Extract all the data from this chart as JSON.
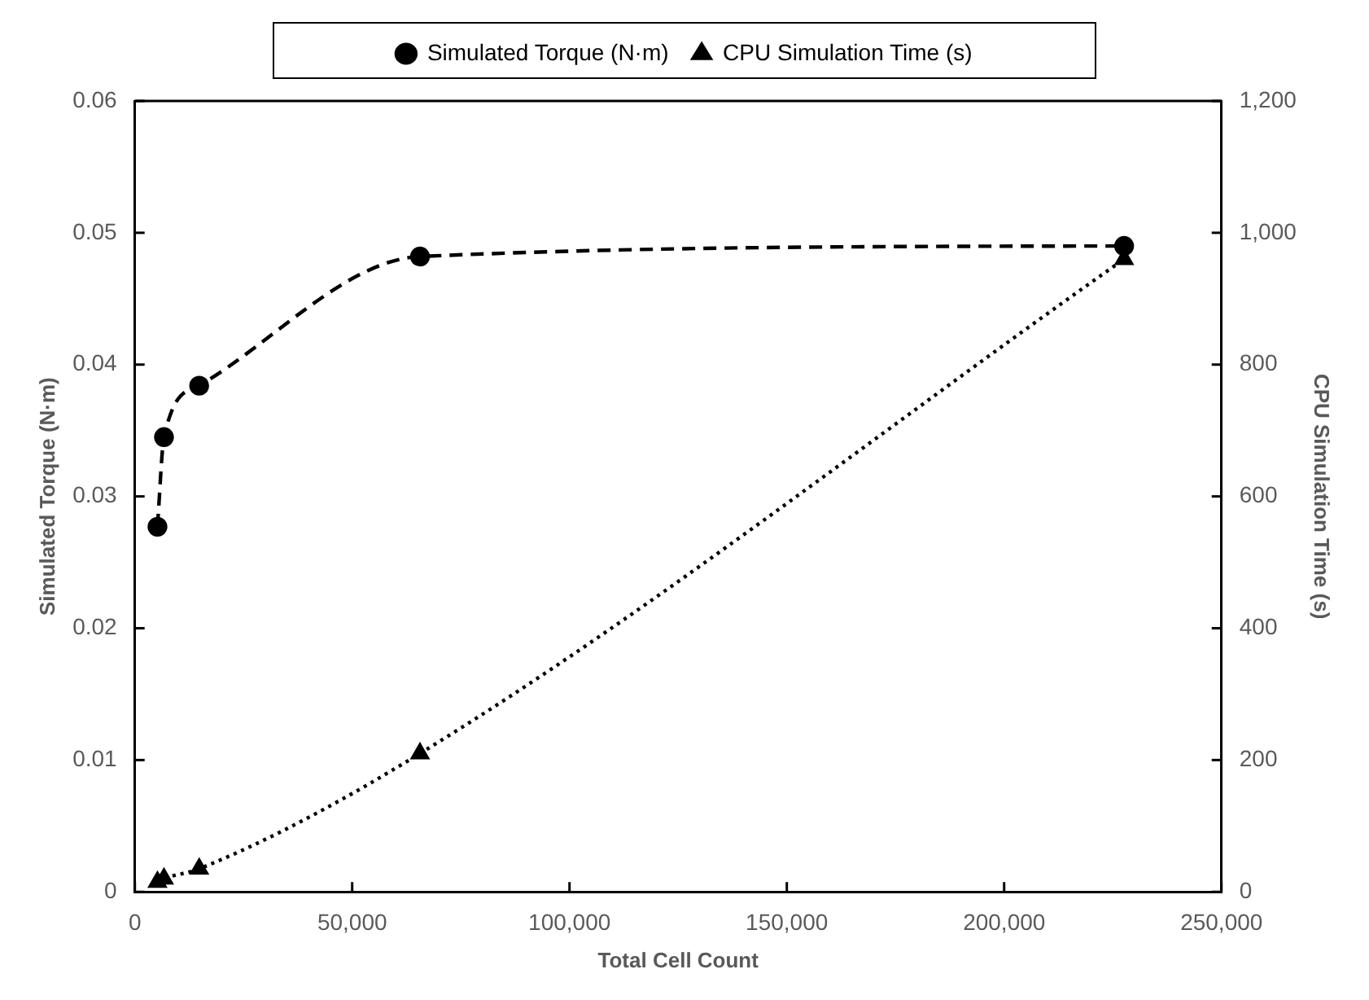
{
  "chart_data": {
    "type": "line",
    "xlabel": "Total Cell Count",
    "ylabel": "Simulated Torque (N·m)",
    "y2label": "CPU Simulation Time (s)",
    "x": [
      5200,
      6700,
      14800,
      65600,
      227600
    ],
    "series": [
      {
        "name": "Simulated Torque (N·m)",
        "color": "#000000",
        "marker": "circle",
        "line_style": "dashed",
        "values": [
          0.0277,
          0.0345,
          0.0384,
          0.0482,
          0.049
        ]
      },
      {
        "name": "CPU Simulation Time (s)",
        "color": "#000000",
        "marker": "triangle",
        "line_style": "dotted",
        "axis": "y2",
        "values": [
          15,
          20,
          35,
          210,
          960
        ]
      }
    ],
    "xlim": [
      0,
      250000
    ],
    "xticks": [
      0,
      {
        "value": 50000,
        "label": "50,000"
      },
      {
        "value": 100000,
        "label": "100,000"
      },
      {
        "value": 150000,
        "label": "150,000"
      },
      {
        "value": 200000,
        "label": "200,000"
      },
      {
        "value": 250000,
        "label": "250,000"
      }
    ],
    "ylim": [
      0,
      0.06
    ],
    "yticks": [
      0,
      0.01,
      0.02,
      0.03,
      0.04,
      0.05,
      0.06
    ],
    "y2lim": [
      0,
      1200
    ],
    "y2ticks": [
      0,
      200,
      400,
      600,
      800,
      {
        "value": 1000,
        "label": "1,000"
      },
      {
        "value": 1200,
        "label": "1,200"
      }
    ],
    "grid": false,
    "legend": "top"
  }
}
